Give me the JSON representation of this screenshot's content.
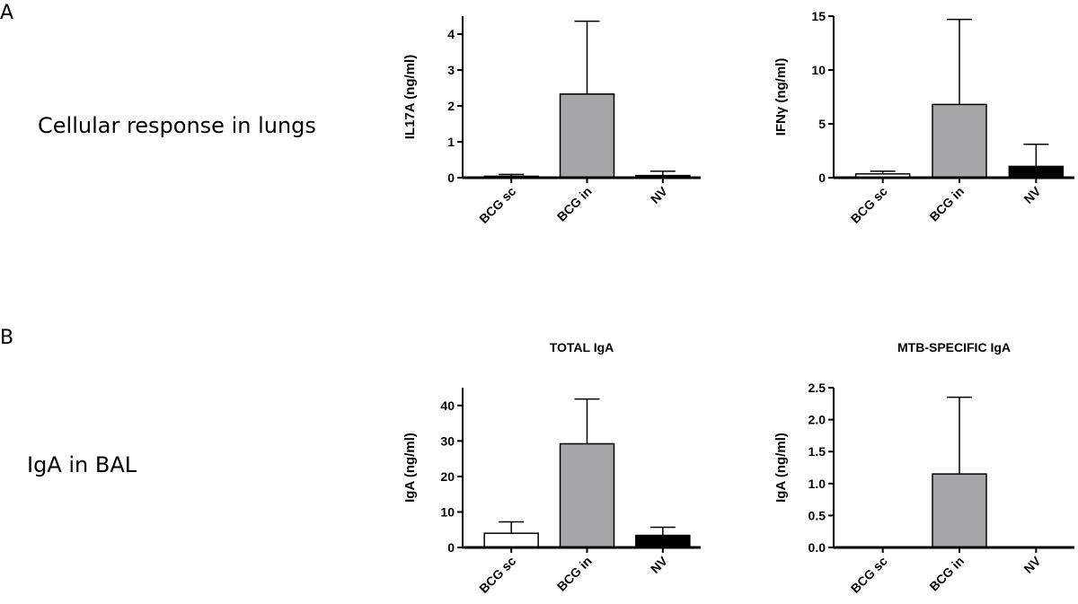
{
  "panels": {
    "a": {
      "letter": "A",
      "label": "Cellular response in lungs"
    },
    "b": {
      "letter": "B",
      "label": "IgA in BAL"
    }
  },
  "colors": {
    "BCG sc": "#ffffff",
    "BCG in": "#a6a6a8",
    "NV": "#000000"
  },
  "chart_data": [
    {
      "type": "bar",
      "title": "",
      "ylabel": "IL17A (ng/ml)",
      "ylim": [
        0,
        4.5
      ],
      "yticks": [
        0,
        1,
        2,
        3,
        4
      ],
      "categories": [
        "BCG sc",
        "BCG in",
        "NV"
      ],
      "values": [
        0.04,
        2.33,
        0.06
      ],
      "errors": [
        0.05,
        2.03,
        0.12
      ]
    },
    {
      "type": "bar",
      "title": "",
      "ylabel": "IFNγ (ng/ml)",
      "ylim": [
        0,
        15
      ],
      "yticks": [
        0,
        5,
        10,
        15
      ],
      "categories": [
        "BCG sc",
        "BCG in",
        "NV"
      ],
      "values": [
        0.35,
        6.8,
        1.05
      ],
      "errors": [
        0.25,
        7.9,
        2.05
      ]
    },
    {
      "type": "bar",
      "title": "TOTAL IgA",
      "ylabel": "IgA (ng/ml)",
      "ylim": [
        0,
        45
      ],
      "yticks": [
        0,
        10,
        20,
        30,
        40
      ],
      "categories": [
        "BCG sc",
        "BCG in",
        "NV"
      ],
      "values": [
        4,
        29.2,
        3.4
      ],
      "errors": [
        3.2,
        12.6,
        2.3
      ]
    },
    {
      "type": "bar",
      "title": "MTB-SPECIFIC IgA",
      "ylabel": "IgA (ng/ml)",
      "ylim": [
        0,
        2.5
      ],
      "yticks": [
        0.0,
        0.5,
        1.0,
        1.5,
        2.0,
        2.5
      ],
      "ytick_labels": [
        "0.0",
        "0.5",
        "1.0",
        "1.5",
        "2.0",
        "2.5"
      ],
      "categories": [
        "BCG sc",
        "BCG in",
        "NV"
      ],
      "values": [
        0,
        1.15,
        0
      ],
      "errors": [
        0,
        1.2,
        0
      ]
    }
  ]
}
